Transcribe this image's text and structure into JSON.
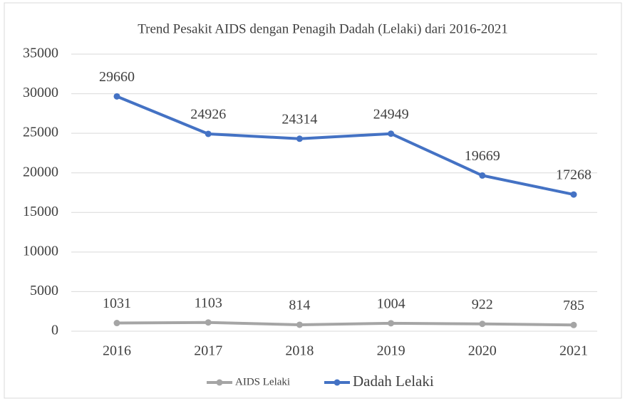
{
  "chart_data": {
    "type": "line",
    "title": "Trend Pesakit AIDS dengan Penagih Dadah (Lelaki) dari 2016-2021",
    "categories": [
      "2016",
      "2017",
      "2018",
      "2019",
      "2020",
      "2021"
    ],
    "series": [
      {
        "name": "AIDS Lelaki",
        "color": "#a5a5a5",
        "values": [
          1031,
          1103,
          814,
          1004,
          922,
          785
        ]
      },
      {
        "name": "Dadah Lelaki",
        "color": "#4472c4",
        "values": [
          29660,
          24926,
          24314,
          24949,
          19669,
          17268
        ]
      }
    ],
    "ylim": [
      0,
      35000
    ],
    "yticks": [
      0,
      5000,
      10000,
      15000,
      20000,
      25000,
      30000,
      35000
    ],
    "grid": true,
    "legend": "bottom"
  }
}
